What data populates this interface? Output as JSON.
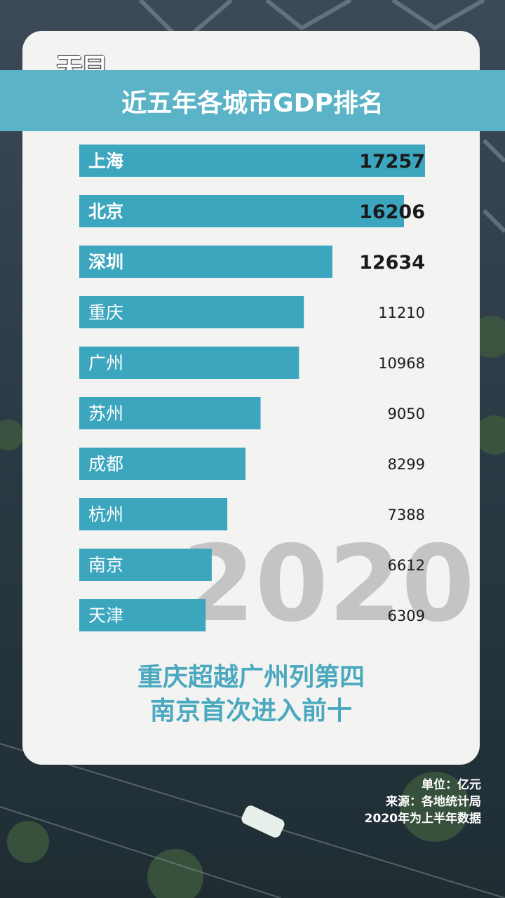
{
  "logo_text": "天目",
  "title": "近五年各城市GDP排名",
  "year_watermark": "2020",
  "headline": [
    "重庆超越广州列第四",
    "南京首次进入前十"
  ],
  "footnotes": [
    "单位：亿元",
    "来源：各地统计局",
    "2020年为上半年数据"
  ],
  "colors": {
    "bar": "#3ca6bf",
    "title_band": "#5ab3c6",
    "headline": "#4aa8bf",
    "card": "#f3f4f2",
    "watermark": "#c4c4c4"
  },
  "chart_data": {
    "type": "bar",
    "orientation": "horizontal",
    "title": "近五年各城市GDP排名",
    "unit": "亿元",
    "categories": [
      "上海",
      "北京",
      "深圳",
      "重庆",
      "广州",
      "苏州",
      "成都",
      "杭州",
      "南京",
      "天津"
    ],
    "values": [
      17257,
      16206,
      12634,
      11210,
      10968,
      9050,
      8299,
      7388,
      6612,
      6309
    ],
    "emphasized": [
      true,
      true,
      true,
      false,
      false,
      false,
      false,
      false,
      false,
      false
    ],
    "xlim": [
      0,
      17257
    ]
  }
}
